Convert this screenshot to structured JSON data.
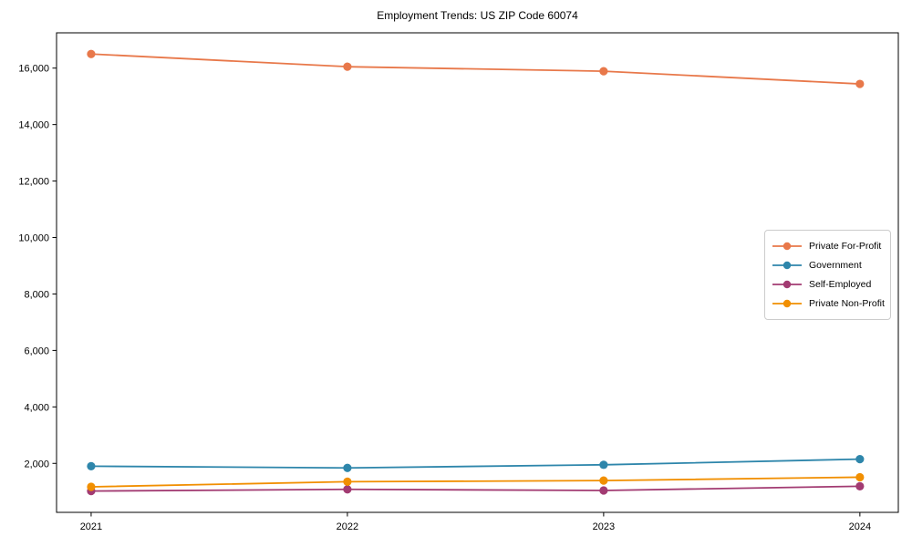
{
  "chart_data": {
    "type": "line",
    "title": "Employment Trends: US ZIP Code 60074",
    "x": [
      2021,
      2022,
      2023,
      2024
    ],
    "xtick_labels": [
      "2021",
      "2022",
      "2023",
      "2024"
    ],
    "series": [
      {
        "name": "Private For-Profit",
        "color": "#E8784A",
        "values": [
          16500,
          16050,
          15890,
          15440
        ]
      },
      {
        "name": "Government",
        "color": "#2E86AB",
        "values": [
          1900,
          1840,
          1950,
          2150
        ]
      },
      {
        "name": "Self-Employed",
        "color": "#A23B72",
        "values": [
          1020,
          1080,
          1040,
          1190
        ]
      },
      {
        "name": "Private Non-Profit",
        "color": "#F18F01",
        "values": [
          1170,
          1350,
          1390,
          1510
        ]
      }
    ],
    "ytick_values": [
      2000,
      4000,
      6000,
      8000,
      10000,
      12000,
      14000,
      16000
    ],
    "ytick_labels": [
      "2,000",
      "4,000",
      "6,000",
      "8,000",
      "10,000",
      "12,000",
      "14,000",
      "16,000"
    ],
    "ylim": [
      265,
      17250
    ],
    "xlim": [
      2020.865,
      2024.15
    ],
    "xlabel": "",
    "ylabel": "",
    "grid": false,
    "legend_position": "center-right",
    "marker": "circle",
    "line_width": 1.8,
    "marker_radius": 4.6,
    "axis_color": "#000000",
    "background_color": "#ffffff"
  }
}
